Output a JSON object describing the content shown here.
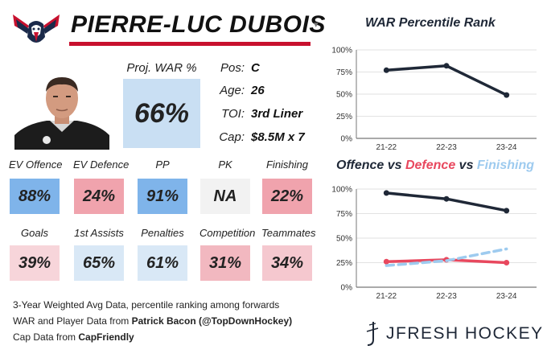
{
  "player": {
    "name": "PIERRE-LUC DUBOIS",
    "proj_war_label": "Proj. WAR %",
    "proj_war_value": "66%",
    "info": [
      {
        "label": "Pos:",
        "value": "C"
      },
      {
        "label": "Age:",
        "value": "26"
      },
      {
        "label": "TOI:",
        "value": "3rd Liner"
      },
      {
        "label": "Cap:",
        "value": "$8.5M x 7"
      }
    ]
  },
  "icons": {
    "team_logo": "capitals-eagle-logo",
    "headshot": "player-headshot",
    "caret": "chevron-down-icon",
    "brand": "jfresh-logo-icon"
  },
  "stats_row1": [
    {
      "label": "EV Offence",
      "value": "88%",
      "color": "#7fb4ea"
    },
    {
      "label": "EV Defence",
      "value": "24%",
      "color": "#f0a3ad"
    },
    {
      "label": "PP",
      "value": "91%",
      "color": "#7fb4ea"
    },
    {
      "label": "PK",
      "value": "NA",
      "color": "#f2f2f2"
    },
    {
      "label": "Finishing",
      "value": "22%",
      "color": "#f0a3ad"
    }
  ],
  "stats_row2": [
    {
      "label": "Goals",
      "value": "39%",
      "color": "#f7d5da"
    },
    {
      "label": "1st Assists",
      "value": "65%",
      "color": "#d9e8f6"
    },
    {
      "label": "Penalties",
      "value": "61%",
      "color": "#d9e8f6"
    },
    {
      "label": "Competition",
      "value": "31%",
      "color": "#f2b8c0"
    },
    {
      "label": "Teammates",
      "value": "34%",
      "color": "#f5c8cf"
    }
  ],
  "footer": {
    "line1": "3-Year Weighted Avg Data, percentile ranking among forwards",
    "line2_prefix": "WAR and Player Data from ",
    "line2_bold": "Patrick Bacon (@TopDownHockey)",
    "line3_prefix": "Cap Data from ",
    "line3_bold": "CapFriendly"
  },
  "brand": {
    "text": "JFRESH HOCKEY"
  },
  "colors": {
    "accent_red": "#c8102e",
    "navy": "#1f2837",
    "defence_red": "#e8485e",
    "finishing_blue": "#9ecbef"
  },
  "chart_data": [
    {
      "type": "line",
      "title": "WAR Percentile Rank",
      "x": [
        "21-22",
        "22-23",
        "23-24"
      ],
      "yticks": [
        "0%",
        "25%",
        "50%",
        "75%",
        "100%"
      ],
      "ylim": [
        0,
        100
      ],
      "grid": "horizontal",
      "series": [
        {
          "values": [
            77,
            82,
            49
          ],
          "color": "#1f2837",
          "style": "solid"
        }
      ]
    },
    {
      "type": "line",
      "title_parts": [
        {
          "text": "Offence",
          "color": "#1f2837"
        },
        {
          "text": " vs ",
          "color": "#1f2837"
        },
        {
          "text": "Defence",
          "color": "#e8485e"
        },
        {
          "text": " vs ",
          "color": "#1f2837"
        },
        {
          "text": "Finishing",
          "color": "#9ecbef"
        }
      ],
      "x": [
        "21-22",
        "22-23",
        "23-24"
      ],
      "yticks": [
        "0%",
        "25%",
        "50%",
        "75%",
        "100%"
      ],
      "ylim": [
        0,
        100
      ],
      "grid": "horizontal",
      "series": [
        {
          "name": "Offence",
          "values": [
            96,
            90,
            78
          ],
          "color": "#1f2837",
          "style": "solid"
        },
        {
          "name": "Defence",
          "values": [
            26,
            28,
            25
          ],
          "color": "#e8485e",
          "style": "solid"
        },
        {
          "name": "Finishing",
          "values": [
            22,
            27,
            39
          ],
          "color": "#9ecbef",
          "style": "dashed"
        }
      ]
    }
  ]
}
